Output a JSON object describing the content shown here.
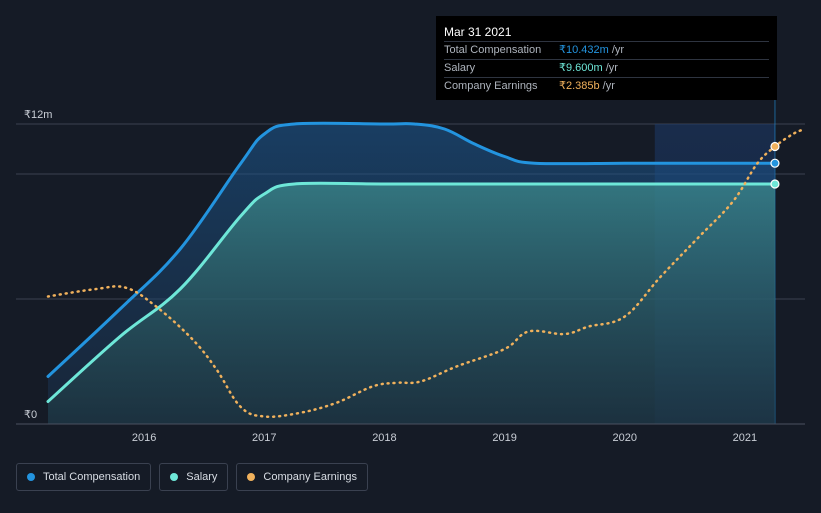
{
  "chart_data": {
    "type": "area",
    "title": "",
    "xlabel": "",
    "ylabel": "",
    "ylim": [
      0,
      12
    ],
    "xlim": [
      2015.2,
      2021.5
    ],
    "y_tick_labels": [
      {
        "value": 12,
        "label": "₹12m"
      },
      {
        "value": 0,
        "label": "₹0"
      }
    ],
    "gridline_values": [
      12,
      10,
      5
    ],
    "x_ticks": [
      {
        "value": 2016,
        "label": "2016"
      },
      {
        "value": 2017,
        "label": "2017"
      },
      {
        "value": 2018,
        "label": "2018"
      },
      {
        "value": 2019,
        "label": "2019"
      },
      {
        "value": 2020,
        "label": "2020"
      },
      {
        "value": 2021,
        "label": "2021"
      }
    ],
    "highlight_range": [
      2020.25,
      2021.25
    ],
    "series": [
      {
        "name": "Total Compensation",
        "color": "#2394df",
        "style": "area-line",
        "x": [
          2015.2,
          2015.8,
          2016.3,
          2016.8,
          2017.0,
          2017.25,
          2018.0,
          2018.25,
          2018.5,
          2018.75,
          2019.0,
          2019.25,
          2020.0,
          2020.5,
          2021.25
        ],
        "values": [
          1.9,
          4.6,
          7.0,
          10.4,
          11.6,
          12.0,
          12.0,
          12.0,
          11.8,
          11.2,
          10.7,
          10.432,
          10.432,
          10.432,
          10.432
        ]
      },
      {
        "name": "Salary",
        "color": "#6ee7d8",
        "style": "area-line",
        "x": [
          2015.2,
          2015.8,
          2016.3,
          2016.8,
          2017.0,
          2017.25,
          2018.0,
          2019.0,
          2020.0,
          2021.25
        ],
        "values": [
          0.9,
          3.5,
          5.4,
          8.3,
          9.2,
          9.6,
          9.6,
          9.6,
          9.6,
          9.6
        ]
      },
      {
        "name": "Company Earnings",
        "color": "#f0b15c",
        "style": "dotted-line",
        "x": [
          2015.2,
          2015.6,
          2015.85,
          2016.1,
          2016.4,
          2016.6,
          2016.8,
          2017.0,
          2017.3,
          2017.6,
          2017.9,
          2018.1,
          2018.3,
          2018.6,
          2019.0,
          2019.2,
          2019.5,
          2019.7,
          2020.0,
          2020.3,
          2020.6,
          2020.9,
          2021.1,
          2021.25,
          2021.4,
          2021.5
        ],
        "values": [
          5.1,
          5.4,
          5.45,
          4.7,
          3.4,
          2.2,
          0.7,
          0.3,
          0.45,
          0.85,
          1.5,
          1.65,
          1.7,
          2.3,
          3.0,
          3.7,
          3.6,
          3.9,
          4.3,
          5.9,
          7.4,
          8.9,
          10.4,
          11.1,
          11.6,
          11.8
        ]
      }
    ],
    "markers": [
      {
        "series": "Total Compensation",
        "x": 2021.25,
        "value": 10.432
      },
      {
        "series": "Salary",
        "x": 2021.25,
        "value": 9.6
      },
      {
        "series": "Company Earnings",
        "x": 2021.25,
        "value": 11.1
      }
    ]
  },
  "tooltip": {
    "title": "Mar 31 2021",
    "rows": [
      {
        "label": "Total Compensation",
        "value": "₹10.432m",
        "unit": "/yr",
        "color": "#2394df"
      },
      {
        "label": "Salary",
        "value": "₹9.600m",
        "unit": "/yr",
        "color": "#6ee7d8"
      },
      {
        "label": "Company Earnings",
        "value": "₹2.385b",
        "unit": "/yr",
        "color": "#f0b15c"
      }
    ]
  },
  "legend": [
    {
      "label": "Total Compensation",
      "color": "#2394df"
    },
    {
      "label": "Salary",
      "color": "#6ee7d8"
    },
    {
      "label": "Company Earnings",
      "color": "#f0b15c"
    }
  ]
}
